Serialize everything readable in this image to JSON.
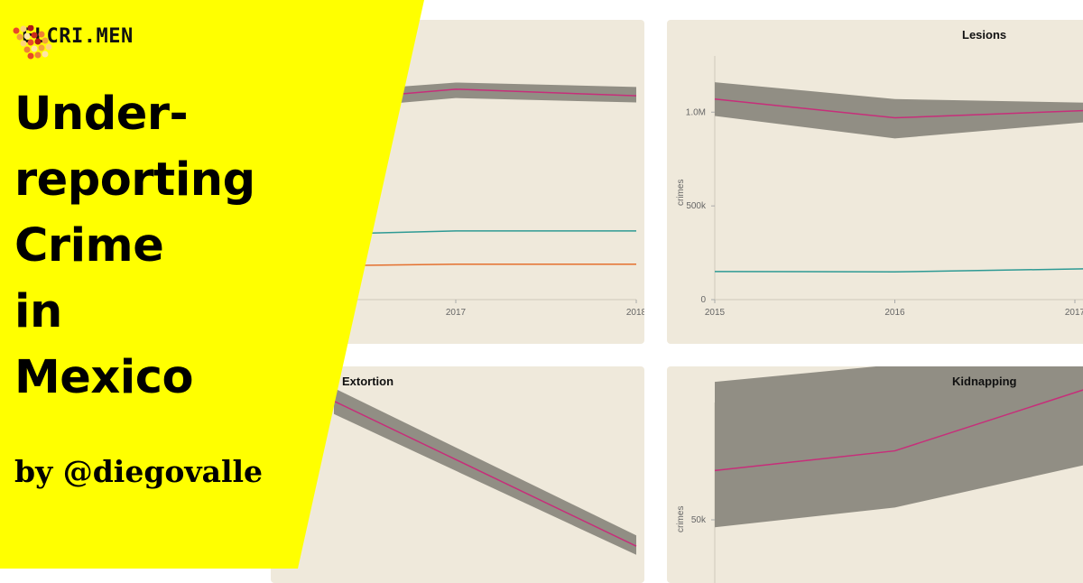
{
  "brand": {
    "name": "ELCRI.MEN",
    "accent": "#ffff00"
  },
  "headline": [
    "Under-",
    "reporting",
    "Crime",
    "in",
    "Mexico"
  ],
  "byline": "by @diegovalle",
  "colors": {
    "panel_bg": "#efe9db",
    "band": "#918e84",
    "reported_line": "#c72e7a",
    "teal_line": "#2e9a94",
    "orange_line": "#e4702e"
  },
  "chart_data": [
    {
      "type": "line",
      "title": "",
      "x_ticks": [
        "2017",
        "2018"
      ],
      "series": [
        {
          "x": [
            2016,
            2017,
            2018
          ],
          "values": [
            0.88,
            0.95,
            0.92
          ],
          "band_low": [
            0.84,
            0.91,
            0.89
          ],
          "band_high": [
            0.92,
            0.98,
            0.96
          ]
        },
        {
          "x": [
            2016,
            2017,
            2018
          ],
          "values": [
            0.29,
            0.31,
            0.31
          ]
        },
        {
          "x": [
            2016,
            2017,
            2018
          ],
          "values": [
            0.15,
            0.16,
            0.16
          ]
        }
      ],
      "ylim": [
        0,
        1.1
      ]
    },
    {
      "type": "line",
      "title": "Lesions",
      "ylabel": "crimes",
      "x_ticks": [
        "2015",
        "2016",
        "2017"
      ],
      "y_ticks": [
        {
          "value": 0,
          "label": "0"
        },
        {
          "value": 500000,
          "label": "500k"
        },
        {
          "value": 1000000,
          "label": "1.0M"
        }
      ],
      "ylim": [
        0,
        1300000
      ],
      "xlim": [
        2015,
        2017.1
      ],
      "series": [
        {
          "x": [
            2015,
            2016,
            2017.1
          ],
          "values": [
            1070000,
            970000,
            1010000
          ],
          "band_low": [
            980000,
            860000,
            950000
          ],
          "band_high": [
            1160000,
            1070000,
            1050000
          ]
        },
        {
          "x": [
            2015,
            2016,
            2017.1
          ],
          "values": [
            150000,
            148000,
            165000
          ]
        }
      ]
    },
    {
      "type": "line",
      "title": "Extortion",
      "series": [
        {
          "x": [
            0,
            1
          ],
          "values": [
            0.84,
            0.17
          ],
          "band_low": [
            0.78,
            0.13
          ],
          "band_high": [
            0.9,
            0.22
          ]
        }
      ]
    },
    {
      "type": "line",
      "title": "Kidnapping",
      "ylabel": "crimes",
      "y_ticks": [
        {
          "value": 50000,
          "label": "50k"
        }
      ],
      "series": [
        {
          "x": [
            2015,
            2016,
            2017.1
          ],
          "values": [
            70000,
            78000,
            104000
          ],
          "band_low": [
            47000,
            55000,
            73000
          ],
          "band_high": [
            106000,
            113000,
            133000
          ]
        }
      ]
    }
  ]
}
